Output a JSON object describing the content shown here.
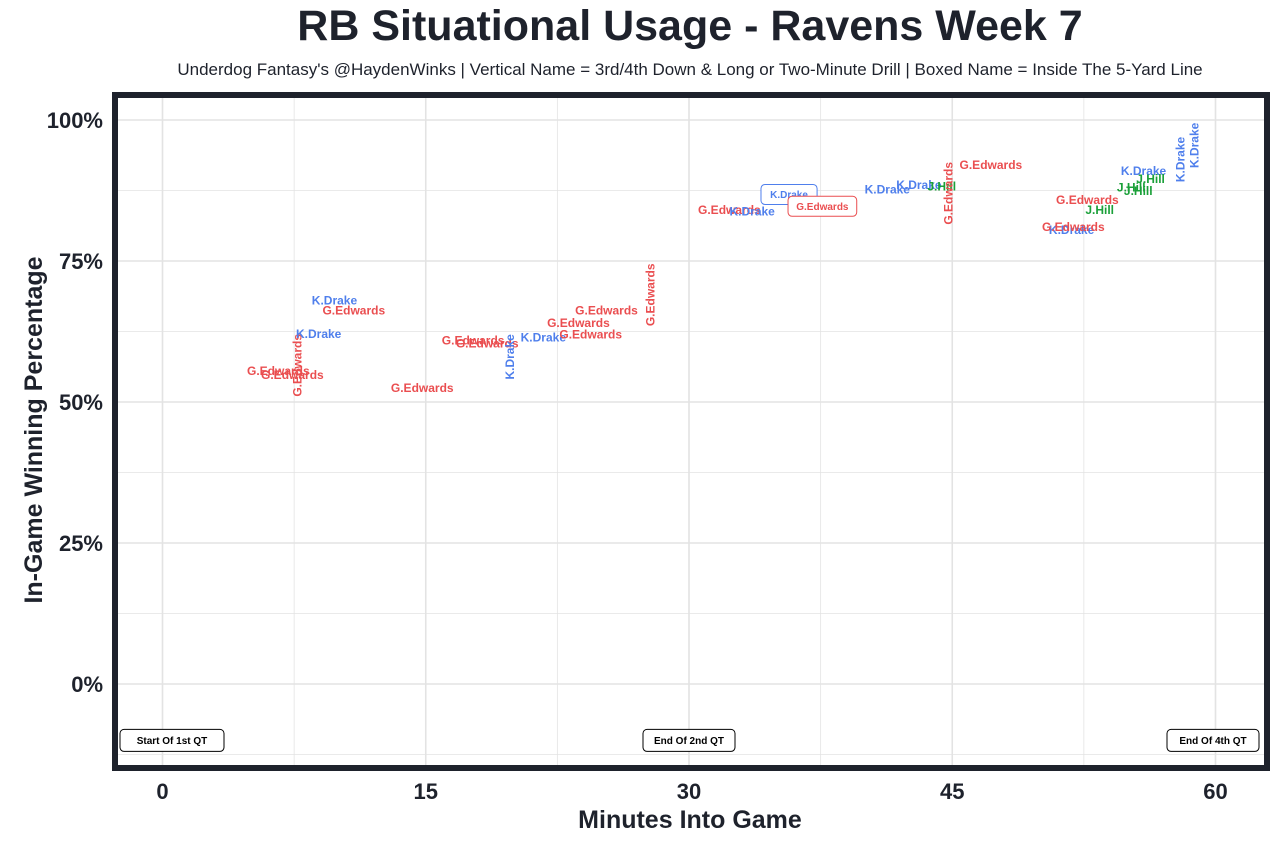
{
  "chart_data": {
    "type": "scatter",
    "title": "RB Situational Usage - Ravens Week 7",
    "subtitle": "Underdog Fantasy's @HaydenWinks | Vertical Name = 3rd/4th Down & Long or Two-Minute Drill | Boxed Name = Inside The 5-Yard Line",
    "xlabel": "Minutes Into Game",
    "ylabel": "In-Game Winning Percentage",
    "xlim": [
      -2.7,
      63
    ],
    "ylim": [
      -15,
      105
    ],
    "x_ticks": [
      0,
      15,
      30,
      45,
      60
    ],
    "x_tick_labels": [
      "0",
      "15",
      "30",
      "45",
      "60"
    ],
    "y_ticks": [
      0,
      25,
      50,
      75,
      100
    ],
    "y_tick_labels": [
      "0%",
      "25%",
      "50%",
      "75%",
      "100%"
    ],
    "colors": {
      "K.Drake": "#4f7fec",
      "G.Edwards": "#ea4e50",
      "J.Hill": "#1ba039",
      "frame": "#1e222c",
      "grid": "#e3e3e3"
    },
    "annotations": [
      {
        "text": "Start Of 1st QT",
        "x": 0,
        "y": -10,
        "anchor": "start"
      },
      {
        "text": "End Of 2nd QT",
        "x": 30,
        "y": -10,
        "anchor": "middle"
      },
      {
        "text": "End Of 4th QT",
        "x": 60,
        "y": -10,
        "anchor": "end"
      }
    ],
    "points": [
      {
        "player": "G.Edwards",
        "x": 6.6,
        "y": 55.5,
        "vertical": false,
        "boxed": false
      },
      {
        "player": "G.Edwards",
        "x": 7.4,
        "y": 54.8,
        "vertical": false,
        "boxed": false
      },
      {
        "player": "G.Edwards",
        "x": 7.7,
        "y": 56.5,
        "vertical": true,
        "boxed": false
      },
      {
        "player": "K.Drake",
        "x": 8.9,
        "y": 62.1,
        "vertical": false,
        "boxed": false
      },
      {
        "player": "K.Drake",
        "x": 9.8,
        "y": 68.0,
        "vertical": false,
        "boxed": false
      },
      {
        "player": "G.Edwards",
        "x": 10.9,
        "y": 66.2,
        "vertical": false,
        "boxed": false
      },
      {
        "player": "G.Edwards",
        "x": 14.8,
        "y": 52.5,
        "vertical": false,
        "boxed": false
      },
      {
        "player": "G.Edwards",
        "x": 17.7,
        "y": 60.9,
        "vertical": false,
        "boxed": false
      },
      {
        "player": "G.Edwards",
        "x": 18.5,
        "y": 60.4,
        "vertical": false,
        "boxed": false
      },
      {
        "player": "K.Drake",
        "x": 19.8,
        "y": 58.0,
        "vertical": true,
        "boxed": false
      },
      {
        "player": "K.Drake",
        "x": 21.7,
        "y": 61.4,
        "vertical": false,
        "boxed": false
      },
      {
        "player": "G.Edwards",
        "x": 23.7,
        "y": 64.0,
        "vertical": false,
        "boxed": false
      },
      {
        "player": "G.Edwards",
        "x": 24.4,
        "y": 62.0,
        "vertical": false,
        "boxed": false
      },
      {
        "player": "G.Edwards",
        "x": 25.3,
        "y": 66.2,
        "vertical": false,
        "boxed": false
      },
      {
        "player": "G.Edwards",
        "x": 27.8,
        "y": 69.0,
        "vertical": true,
        "boxed": false
      },
      {
        "player": "G.Edwards",
        "x": 32.3,
        "y": 84.0,
        "vertical": false,
        "boxed": false
      },
      {
        "player": "K.Drake",
        "x": 33.6,
        "y": 83.8,
        "vertical": false,
        "boxed": false
      },
      {
        "player": "K.Drake",
        "x": 35.7,
        "y": 86.8,
        "vertical": false,
        "boxed": true
      },
      {
        "player": "G.Edwards",
        "x": 37.6,
        "y": 84.7,
        "vertical": false,
        "boxed": true
      },
      {
        "player": "K.Drake",
        "x": 41.3,
        "y": 87.7,
        "vertical": false,
        "boxed": false
      },
      {
        "player": "K.Drake",
        "x": 43.1,
        "y": 88.5,
        "vertical": false,
        "boxed": false
      },
      {
        "player": "J.Hill",
        "x": 44.4,
        "y": 88.2,
        "vertical": false,
        "boxed": false
      },
      {
        "player": "G.Edwards",
        "x": 44.8,
        "y": 87.0,
        "vertical": true,
        "boxed": false
      },
      {
        "player": "G.Edwards",
        "x": 47.2,
        "y": 92.0,
        "vertical": false,
        "boxed": false
      },
      {
        "player": "K.Drake",
        "x": 51.8,
        "y": 80.5,
        "vertical": false,
        "boxed": false
      },
      {
        "player": "G.Edwards",
        "x": 51.9,
        "y": 81.0,
        "vertical": false,
        "boxed": false
      },
      {
        "player": "G.Edwards",
        "x": 52.7,
        "y": 85.8,
        "vertical": false,
        "boxed": false
      },
      {
        "player": "J.Hill",
        "x": 53.4,
        "y": 84.0,
        "vertical": false,
        "boxed": false
      },
      {
        "player": "J.Hill",
        "x": 55.2,
        "y": 88.0,
        "vertical": false,
        "boxed": false
      },
      {
        "player": "J.Hill",
        "x": 55.6,
        "y": 87.4,
        "vertical": false,
        "boxed": false
      },
      {
        "player": "K.Drake",
        "x": 55.9,
        "y": 91.0,
        "vertical": false,
        "boxed": false
      },
      {
        "player": "J.Hill",
        "x": 56.3,
        "y": 89.5,
        "vertical": false,
        "boxed": false
      },
      {
        "player": "K.Drake",
        "x": 58.0,
        "y": 93.0,
        "vertical": true,
        "boxed": false
      },
      {
        "player": "K.Drake",
        "x": 58.8,
        "y": 95.5,
        "vertical": true,
        "boxed": false
      }
    ]
  }
}
